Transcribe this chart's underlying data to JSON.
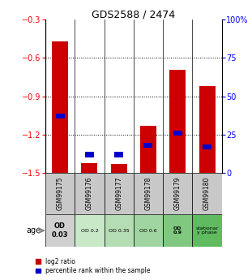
{
  "title": "GDS2588 / 2474",
  "samples": [
    "GSM99175",
    "GSM99176",
    "GSM99177",
    "GSM99178",
    "GSM99179",
    "GSM99180"
  ],
  "log2_ratio": [
    -0.47,
    -1.42,
    -1.43,
    -1.13,
    -0.69,
    -0.82
  ],
  "percentile_rank_pct": [
    37,
    12,
    12,
    18,
    26,
    17
  ],
  "ylim_left": [
    -1.5,
    -0.3
  ],
  "ylim_right": [
    0,
    100
  ],
  "yticks_left": [
    -1.5,
    -1.2,
    -0.9,
    -0.6,
    -0.3
  ],
  "yticks_right": [
    0,
    25,
    50,
    75,
    100
  ],
  "ytick_labels_right": [
    "0",
    "25",
    "50",
    "75",
    "100%"
  ],
  "bar_width": 0.55,
  "red_color": "#cc0000",
  "blue_color": "#0000cc",
  "age_labels": [
    "OD\n0.03",
    "OD 0.2",
    "OD 0.35",
    "OD 0.6",
    "OD\n0.9",
    "stationar\ny phase"
  ],
  "age_bg_colors": [
    "#d0d0d0",
    "#c8e8c8",
    "#b4ddb4",
    "#a0d4a0",
    "#80c880",
    "#60bb60"
  ],
  "sample_bg_color": "#c8c8c8",
  "dotted_levels": [
    -0.6,
    -0.9,
    -1.2
  ]
}
